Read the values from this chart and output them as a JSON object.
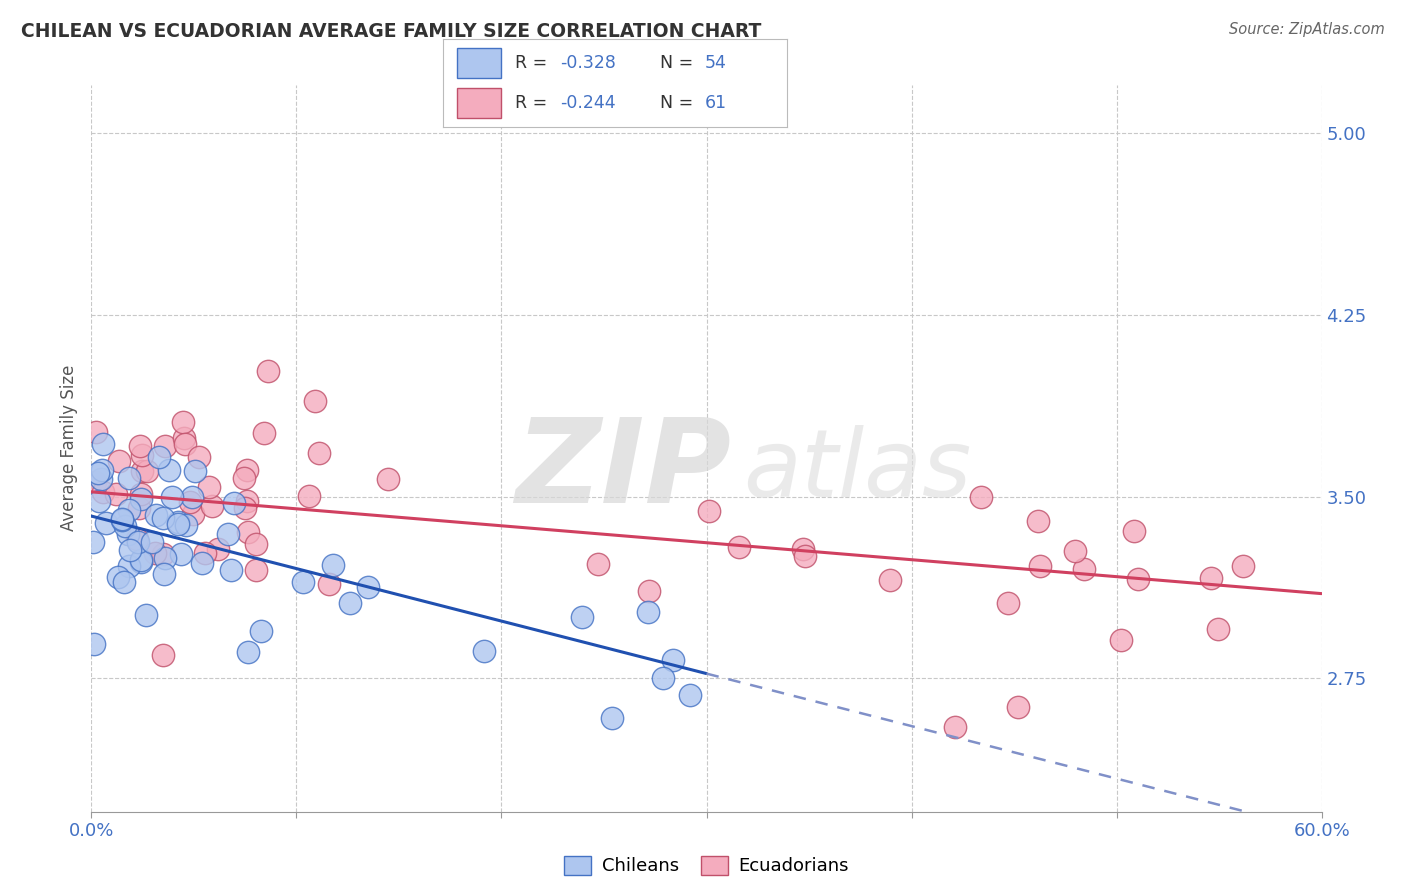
{
  "title": "CHILEAN VS ECUADORIAN AVERAGE FAMILY SIZE CORRELATION CHART",
  "source": "Source: ZipAtlas.com",
  "ylabel": "Average Family Size",
  "xlim": [
    0.0,
    0.6
  ],
  "ylim": [
    2.2,
    5.2
  ],
  "yticks": [
    2.75,
    3.5,
    4.25,
    5.0
  ],
  "xtick_vals": [
    0.0,
    0.1,
    0.2,
    0.3,
    0.4,
    0.5,
    0.6
  ],
  "xtick_labels": [
    "0.0%",
    "",
    "",
    "",
    "",
    "",
    "60.0%"
  ],
  "tick_color": "#4472C4",
  "chilean_color": "#AEC6EF",
  "chilean_edge": "#4472C4",
  "ecuadorian_color": "#F4ACBE",
  "ecuadorian_edge": "#C0506A",
  "blue_line_color": "#2050B0",
  "pink_line_color": "#D04060",
  "dashed_color": "#8090C8",
  "legend_label_blue": "Chileans",
  "legend_label_pink": "Ecuadorians",
  "R_blue": "-0.328",
  "N_blue": "54",
  "R_pink": "-0.244",
  "N_pink": "61",
  "watermark_zip": "ZIP",
  "watermark_atlas": "atlas",
  "background": "#ffffff",
  "grid_color": "#C8C8C8",
  "chile_line_x0": 0.0,
  "chile_line_y0": 3.42,
  "chile_line_solid_x1": 0.3,
  "chile_line_solid_y1": 2.77,
  "chile_line_dash_x1": 0.6,
  "ecuador_line_x0": 0.0,
  "ecuador_line_y0": 3.52,
  "ecuador_line_x1": 0.6,
  "ecuador_line_y1": 3.1,
  "seed_chile": 42,
  "seed_ecuador": 17
}
